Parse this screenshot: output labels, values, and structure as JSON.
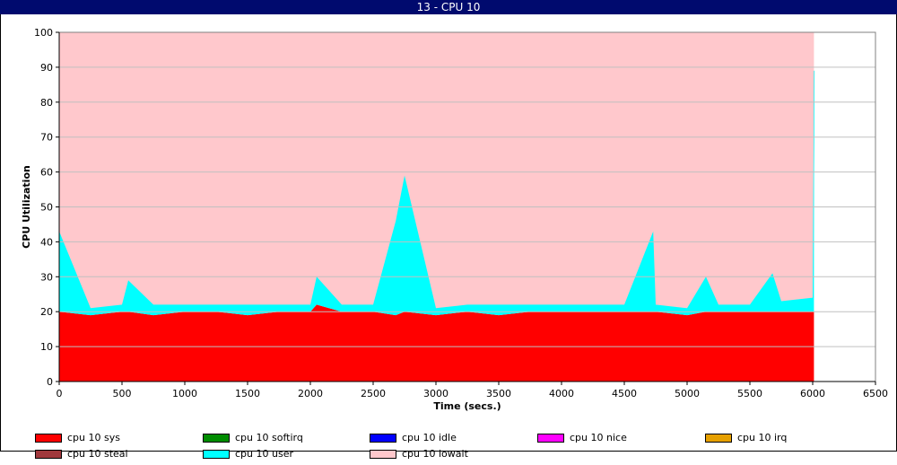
{
  "window": {
    "title": "13 - CPU 10"
  },
  "colors": {
    "sys": "#ff0000",
    "softirq": "#008c00",
    "idle": "#0000ff",
    "nice": "#ff00ff",
    "irq": "#e6a000",
    "steal": "#a0383c",
    "user": "#00ffff",
    "iowait": "#ffc8cc"
  },
  "chart_data": {
    "type": "area",
    "stacked": true,
    "title": "",
    "xlabel": "Time (secs.)",
    "ylabel": "CPU Utilization",
    "xlim": [
      0,
      6500
    ],
    "ylim": [
      0,
      100
    ],
    "xticks": [
      0,
      500,
      1000,
      1500,
      2000,
      2500,
      3000,
      3500,
      4000,
      4500,
      5000,
      5500,
      6000,
      6500
    ],
    "yticks": [
      0,
      10,
      20,
      30,
      40,
      50,
      60,
      70,
      80,
      90,
      100
    ],
    "grid": "horizontal",
    "legend_position": "bottom",
    "x": [
      0,
      250,
      500,
      550,
      750,
      1000,
      1250,
      1500,
      1750,
      2000,
      2050,
      2250,
      2500,
      2680,
      2750,
      3000,
      3250,
      3500,
      3750,
      4000,
      4250,
      4500,
      4730,
      4750,
      5000,
      5150,
      5250,
      5500,
      5680,
      5750,
      6000,
      6010
    ],
    "series": [
      {
        "name": "cpu 10 sys",
        "key": "sys",
        "values": [
          20,
          19,
          20,
          20,
          19,
          20,
          20,
          19,
          20,
          20,
          22,
          20,
          20,
          19,
          20,
          19,
          20,
          19,
          20,
          20,
          20,
          20,
          20,
          20,
          19,
          20,
          20,
          20,
          20,
          20,
          20,
          20
        ]
      },
      {
        "name": "cpu 10 softirq",
        "key": "softirq",
        "values": [
          0,
          0,
          0,
          0,
          0,
          0,
          0,
          0,
          0,
          0,
          0,
          0,
          0,
          0,
          0,
          0,
          0,
          0,
          0,
          0,
          0,
          0,
          0,
          0,
          0,
          0,
          0,
          0,
          0,
          0,
          0,
          0
        ]
      },
      {
        "name": "cpu 10 idle",
        "key": "idle",
        "values": [
          0,
          0,
          0,
          0,
          0,
          0,
          0,
          0,
          0,
          0,
          0,
          0,
          0,
          0,
          0,
          0,
          0,
          0,
          0,
          0,
          0,
          0,
          0,
          0,
          0,
          0,
          0,
          0,
          0,
          0,
          0,
          0
        ]
      },
      {
        "name": "cpu 10 nice",
        "key": "nice",
        "values": [
          0,
          0,
          0,
          0,
          0,
          0,
          0,
          0,
          0,
          0,
          0,
          0,
          0,
          0,
          0,
          0,
          0,
          0,
          0,
          0,
          0,
          0,
          0,
          0,
          0,
          0,
          0,
          0,
          0,
          0,
          0,
          0
        ]
      },
      {
        "name": "cpu 10 irq",
        "key": "irq",
        "values": [
          0,
          0,
          0,
          0,
          0,
          0,
          0,
          0,
          0,
          0,
          0,
          0,
          0,
          0,
          0,
          0,
          0,
          0,
          0,
          0,
          0,
          0,
          0,
          0,
          0,
          0,
          0,
          0,
          0,
          0,
          0,
          0
        ]
      },
      {
        "name": "cpu 10 steal",
        "key": "steal",
        "values": [
          0,
          0,
          0,
          0,
          0,
          0,
          0,
          0,
          0,
          0,
          0,
          0,
          0,
          0,
          0,
          0,
          0,
          0,
          0,
          0,
          0,
          0,
          0,
          0,
          0,
          0,
          0,
          0,
          0,
          0,
          0,
          0
        ]
      },
      {
        "name": "cpu 10 user",
        "key": "user",
        "values": [
          23,
          2,
          2,
          9,
          3,
          2,
          2,
          3,
          2,
          2,
          8,
          2,
          2,
          27,
          39,
          2,
          2,
          3,
          2,
          2,
          2,
          2,
          23,
          2,
          2,
          10,
          2,
          2,
          11,
          3,
          4,
          69
        ]
      },
      {
        "name": "cpu 10 iowait",
        "key": "iowait",
        "values": [
          57,
          79,
          78,
          71,
          78,
          78,
          78,
          78,
          78,
          78,
          70,
          78,
          78,
          54,
          41,
          79,
          78,
          78,
          78,
          78,
          78,
          78,
          57,
          78,
          79,
          70,
          78,
          78,
          69,
          77,
          76,
          11
        ]
      }
    ]
  }
}
